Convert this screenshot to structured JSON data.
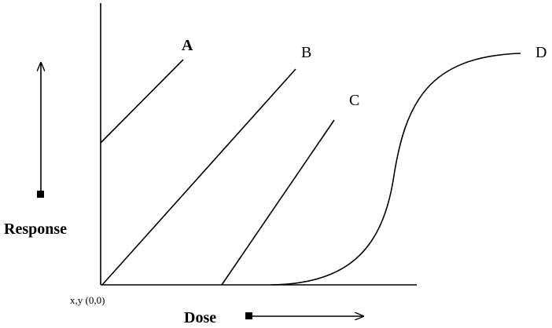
{
  "curves": {
    "a": "A",
    "b": "B",
    "c": "C",
    "d": "D"
  },
  "axes": {
    "y_label": "Response",
    "x_label": "Dose",
    "origin": "x,y (0,0)"
  }
}
